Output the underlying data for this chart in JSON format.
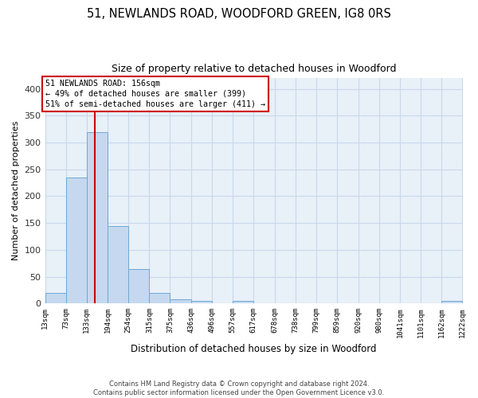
{
  "title": "51, NEWLANDS ROAD, WOODFORD GREEN, IG8 0RS",
  "subtitle": "Size of property relative to detached houses in Woodford",
  "xlabel": "Distribution of detached houses by size in Woodford",
  "ylabel": "Number of detached properties",
  "footer_line1": "Contains HM Land Registry data © Crown copyright and database right 2024.",
  "footer_line2": "Contains public sector information licensed under the Open Government Licence v3.0.",
  "bar_edges": [
    13,
    73,
    133,
    194,
    254,
    315,
    375,
    436,
    496,
    557,
    617,
    678,
    738,
    799,
    859,
    920,
    980,
    1041,
    1101,
    1162,
    1222
  ],
  "bar_heights": [
    20,
    235,
    320,
    144,
    64,
    20,
    8,
    5,
    0,
    5,
    0,
    0,
    0,
    0,
    0,
    0,
    0,
    0,
    0,
    5
  ],
  "bar_color": "#c5d8ef",
  "bar_edge_color": "#6fa8d4",
  "grid_color": "#c8d8ea",
  "background_color": "#e8f0f8",
  "property_size": 156,
  "vline_color": "#cc0000",
  "annotation_line1": "51 NEWLANDS ROAD: 156sqm",
  "annotation_line2": "← 49% of detached houses are smaller (399)",
  "annotation_line3": "51% of semi-detached houses are larger (411) →",
  "annotation_box_color": "#cc0000",
  "ylim": [
    0,
    420
  ],
  "yticks": [
    0,
    50,
    100,
    150,
    200,
    250,
    300,
    350,
    400
  ],
  "tick_labels": [
    "13sqm",
    "73sqm",
    "133sqm",
    "194sqm",
    "254sqm",
    "315sqm",
    "375sqm",
    "436sqm",
    "496sqm",
    "557sqm",
    "617sqm",
    "678sqm",
    "738sqm",
    "799sqm",
    "859sqm",
    "920sqm",
    "980sqm",
    "1041sqm",
    "1101sqm",
    "1162sqm",
    "1222sqm"
  ]
}
